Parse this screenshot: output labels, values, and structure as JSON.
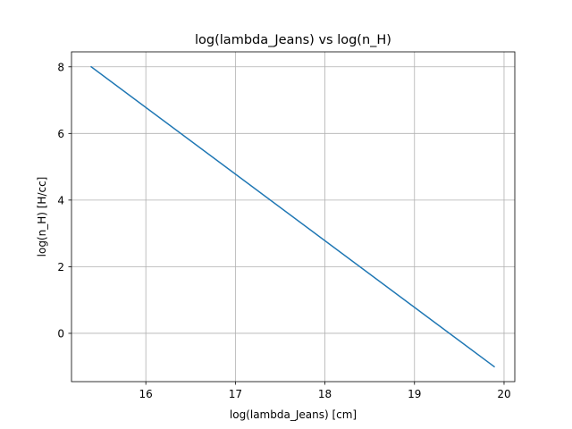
{
  "chart_data": {
    "type": "line",
    "title": "log(lambda_Jeans) vs log(n_H)",
    "xlabel": "log(lambda_Jeans) [cm]",
    "ylabel": "log(n_H) [H/cc]",
    "xlim": [
      15.17,
      20.12
    ],
    "ylim": [
      -1.45,
      8.45
    ],
    "xticks": [
      16,
      17,
      18,
      19,
      20
    ],
    "xtick_labels": [
      "16",
      "17",
      "18",
      "19",
      "20"
    ],
    "yticks": [
      0,
      2,
      4,
      6,
      8
    ],
    "ytick_labels": [
      "0",
      "2",
      "4",
      "6",
      "8"
    ],
    "grid": true,
    "line_color": "#1f77b4",
    "series": [
      {
        "x": [
          15.39,
          19.89
        ],
        "y": [
          8,
          -1
        ]
      }
    ]
  }
}
